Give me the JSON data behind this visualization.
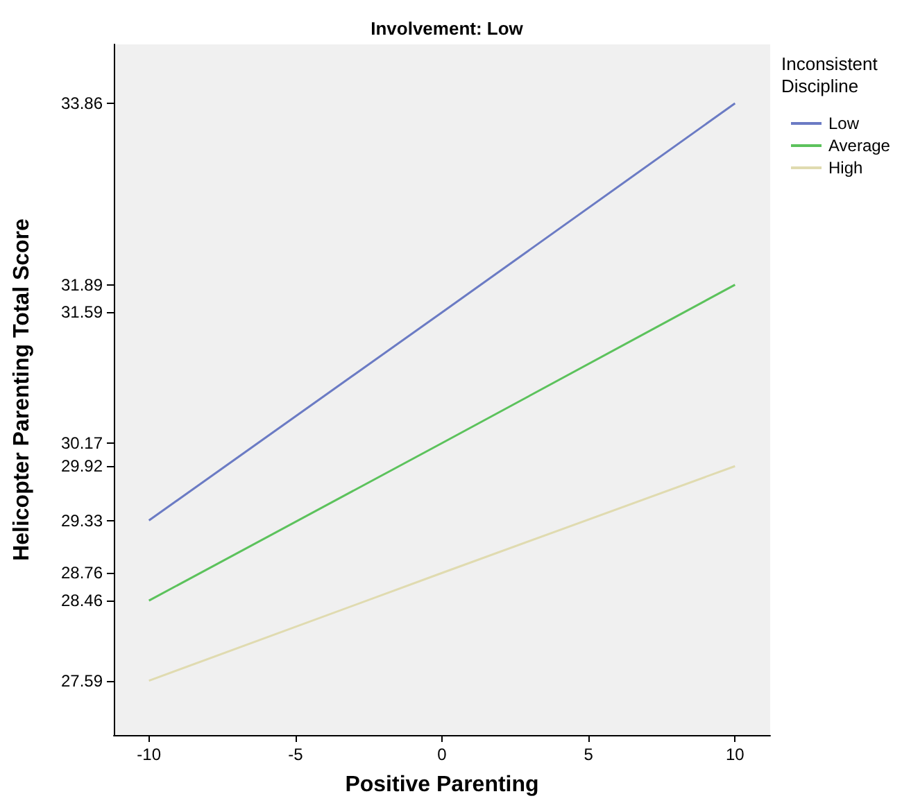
{
  "chart_data": {
    "type": "line",
    "title": "Involvement: Low",
    "xlabel": "Positive Parenting",
    "ylabel": "Helicopter Parenting Total Score",
    "legend_title": "Inconsistent Discipline",
    "legend": "right",
    "marker": "none",
    "x": [
      -10,
      0,
      10
    ],
    "xlim": [
      -11.2,
      11.2
    ],
    "xticks": [
      -10,
      -5,
      0,
      5,
      10
    ],
    "ylim": [
      27,
      34.5
    ],
    "yticks": [
      27.59,
      28.46,
      28.76,
      29.33,
      29.92,
      30.17,
      31.59,
      31.89,
      33.86
    ],
    "series": [
      {
        "name": "Low",
        "color": "#6b7bc4",
        "values": [
          29.33,
          31.59,
          33.86
        ]
      },
      {
        "name": "Average",
        "color": "#5cc25c",
        "values": [
          28.46,
          30.17,
          31.89
        ]
      },
      {
        "name": "High",
        "color": "#e0dbb0",
        "values": [
          27.59,
          28.76,
          29.92
        ]
      }
    ]
  }
}
